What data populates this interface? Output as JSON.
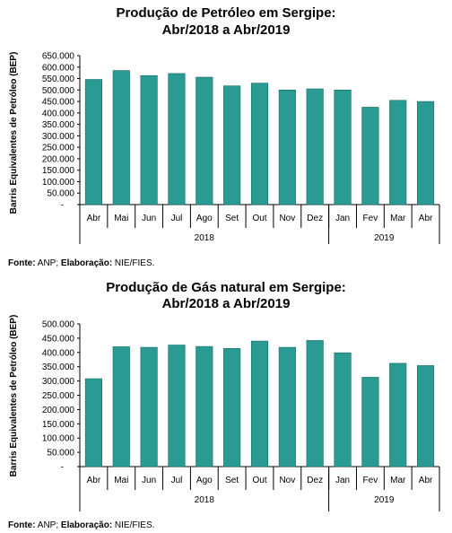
{
  "colors": {
    "bar": "#2a9b92",
    "bar_edge": "#146a64",
    "axis": "#000000"
  },
  "chart_data": [
    {
      "type": "bar",
      "title_line1": "Produção de Petróleo em Sergipe:",
      "title_line2": "Abr/2018 a Abr/2019",
      "ylabel": "Barris Equivalentes de Petróleo (BEP)",
      "xlabel": "",
      "categories": [
        "Abr",
        "Mai",
        "Jun",
        "Jul",
        "Ago",
        "Set",
        "Out",
        "Nov",
        "Dez",
        "Jan",
        "Fev",
        "Mar",
        "Abr"
      ],
      "groups": [
        {
          "label": "2018",
          "count": 9
        },
        {
          "label": "2019",
          "count": 4
        }
      ],
      "values": [
        546000,
        585000,
        563000,
        572000,
        556000,
        518000,
        530000,
        500000,
        505000,
        500000,
        425000,
        455000,
        450000
      ],
      "ylim": [
        0,
        650000
      ],
      "yticks": [
        {
          "v": 650000,
          "label": "650.000"
        },
        {
          "v": 600000,
          "label": "600.000"
        },
        {
          "v": 550000,
          "label": "550.000"
        },
        {
          "v": 500000,
          "label": "500.000"
        },
        {
          "v": 450000,
          "label": "450.000"
        },
        {
          "v": 400000,
          "label": "400.000"
        },
        {
          "v": 350000,
          "label": "350.000"
        },
        {
          "v": 300000,
          "label": "300.000"
        },
        {
          "v": 250000,
          "label": "250.000"
        },
        {
          "v": 200000,
          "label": "200.000"
        },
        {
          "v": 150000,
          "label": "150.000"
        },
        {
          "v": 100000,
          "label": "100.000"
        },
        {
          "v": 50000,
          "label": "50.000"
        },
        {
          "v": 0,
          "label": "-"
        }
      ],
      "grid": false,
      "legend": "none",
      "source_label": "Fonte:",
      "source_text": " ANP; ",
      "elab_label": "Elaboração:",
      "elab_text": " NIE/FIES."
    },
    {
      "type": "bar",
      "title_line1": "Produção de Gás natural em Sergipe:",
      "title_line2": "Abr/2018 a Abr/2019",
      "ylabel": "Barris Equivalentes de Petróleo (BEP)",
      "xlabel": "",
      "categories": [
        "Abr",
        "Mai",
        "Jun",
        "Jul",
        "Ago",
        "Set",
        "Out",
        "Nov",
        "Dez",
        "Jan",
        "Fev",
        "Mar",
        "Abr"
      ],
      "groups": [
        {
          "label": "2018",
          "count": 9
        },
        {
          "label": "2019",
          "count": 4
        }
      ],
      "values": [
        308000,
        420000,
        418000,
        426000,
        421000,
        414000,
        440000,
        418000,
        442000,
        399000,
        313000,
        362000,
        354000
      ],
      "ylim": [
        0,
        500000
      ],
      "yticks": [
        {
          "v": 500000,
          "label": "500.000"
        },
        {
          "v": 450000,
          "label": "450.000"
        },
        {
          "v": 400000,
          "label": "400.000"
        },
        {
          "v": 350000,
          "label": "350.000"
        },
        {
          "v": 300000,
          "label": "300.000"
        },
        {
          "v": 250000,
          "label": "250.000"
        },
        {
          "v": 200000,
          "label": "200.000"
        },
        {
          "v": 150000,
          "label": "150.000"
        },
        {
          "v": 100000,
          "label": "100.000"
        },
        {
          "v": 50000,
          "label": "50.000"
        },
        {
          "v": 0,
          "label": "-"
        }
      ],
      "grid": false,
      "legend": "none",
      "source_label": "Fonte:",
      "source_text": " ANP; ",
      "elab_label": "Elaboração:",
      "elab_text": " NIE/FIES."
    }
  ]
}
